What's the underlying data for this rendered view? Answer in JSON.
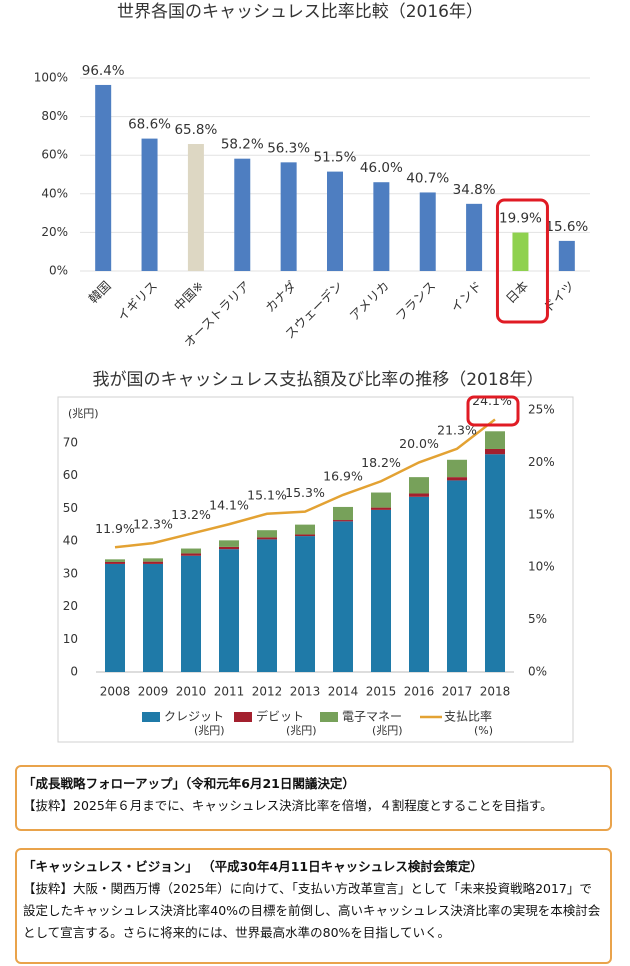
{
  "chart_data": [
    {
      "type": "bar",
      "title": "世界各国のキャッシュレス比率比較（2016年）",
      "categories": [
        "韓国",
        "イギリス",
        "中国※",
        "オーストラリア",
        "カナダ",
        "スウェーデン",
        "アメリカ",
        "フランス",
        "インド",
        "日本",
        "ドイツ"
      ],
      "values": [
        96.4,
        68.6,
        65.8,
        58.2,
        56.3,
        51.5,
        46.0,
        40.7,
        34.8,
        19.9,
        15.6
      ],
      "value_labels": [
        "96.4%",
        "68.6%",
        "65.8%",
        "58.2%",
        "56.3%",
        "51.5%",
        "46.0%",
        "40.7%",
        "34.8%",
        "19.9%",
        "15.6%"
      ],
      "colors": [
        "#4e7ec1",
        "#4e7ec1",
        "#ddd7c3",
        "#4e7ec1",
        "#4e7ec1",
        "#4e7ec1",
        "#4e7ec1",
        "#4e7ec1",
        "#4e7ec1",
        "#8fd14f",
        "#4e7ec1"
      ],
      "ylim": [
        0,
        100
      ],
      "yticks": [
        {
          "value": 0,
          "label": "0%"
        },
        {
          "value": 20,
          "label": "20%"
        },
        {
          "value": 40,
          "label": "40%"
        },
        {
          "value": 60,
          "label": "60%"
        },
        {
          "value": 80,
          "label": "80%"
        },
        {
          "value": 100,
          "label": "100%"
        }
      ],
      "grid": true
    },
    {
      "type": "combo",
      "title": "我が国のキャッシュレス支払額及び比率の推移（2018年）",
      "y_label": "(兆円)",
      "categories": [
        "2008",
        "2009",
        "2010",
        "2011",
        "2012",
        "2013",
        "2014",
        "2015",
        "2016",
        "2017",
        "2018"
      ],
      "series": [
        {
          "name": "クレジット",
          "unit": "(兆円)",
          "type": "bar",
          "color": "#1f7aa8",
          "values": [
            33.0,
            33.0,
            35.5,
            37.5,
            40.5,
            41.5,
            46.0,
            49.5,
            53.5,
            58.5,
            66.5
          ]
        },
        {
          "name": "デビット",
          "unit": "(兆円)",
          "type": "bar",
          "color": "#a3202e",
          "values": [
            0.6,
            0.7,
            0.7,
            0.7,
            0.6,
            0.5,
            0.4,
            0.7,
            1.0,
            1.0,
            1.6
          ]
        },
        {
          "name": "電子マネー",
          "unit": "(兆円)",
          "type": "bar",
          "color": "#77a15a",
          "values": [
            0.8,
            1.0,
            1.5,
            2.0,
            2.2,
            3.0,
            4.0,
            4.6,
            5.0,
            5.3,
            5.4
          ]
        },
        {
          "name": "支払比率",
          "unit": "(%)",
          "type": "line",
          "axis": "y2",
          "color": "#e3a233",
          "values": [
            11.9,
            12.3,
            13.2,
            14.1,
            15.1,
            15.3,
            16.9,
            18.2,
            20.0,
            21.3,
            24.1
          ],
          "value_labels": [
            "11.9%",
            "12.3%",
            "13.2%",
            "14.1%",
            "15.1%",
            "15.3%",
            "16.9%",
            "18.2%",
            "20.0%",
            "21.3%",
            "24.1%"
          ]
        }
      ],
      "ylim": [
        0,
        80
      ],
      "yticks": [
        0,
        10,
        20,
        30,
        40,
        50,
        60,
        70
      ],
      "y2lim": [
        0,
        25
      ],
      "y2ticks": [
        {
          "value": 0,
          "label": "0%"
        },
        {
          "value": 5,
          "label": "5%"
        },
        {
          "value": 10,
          "label": "10%"
        },
        {
          "value": 15,
          "label": "15%"
        },
        {
          "value": 20,
          "label": "20%"
        },
        {
          "value": 25,
          "label": "25%"
        }
      ]
    }
  ],
  "notes": [
    {
      "title": "「成長戦略フォローアップ」（令和元年6月21日閣議決定）",
      "body": "【抜粋】2025年６月までに、キャッシュレス決済比率を倍増，４割程度とすることを目指す。"
    },
    {
      "title": "「キャッシュレス・ビジョン」 （平成30年4月11日キャッシュレス検討会策定）",
      "body": "【抜粋】大阪・関西万博（2025年）に向けて、「支払い方改革宣言」として「未来投資戦略2017」で設定したキャッシュレス決済比率40%の目標を前倒し、高いキャッシュレス決済比率の実現を本検討会として宣言する。さらに将来的には、世界最高水準の80%を目指していく。"
    }
  ]
}
